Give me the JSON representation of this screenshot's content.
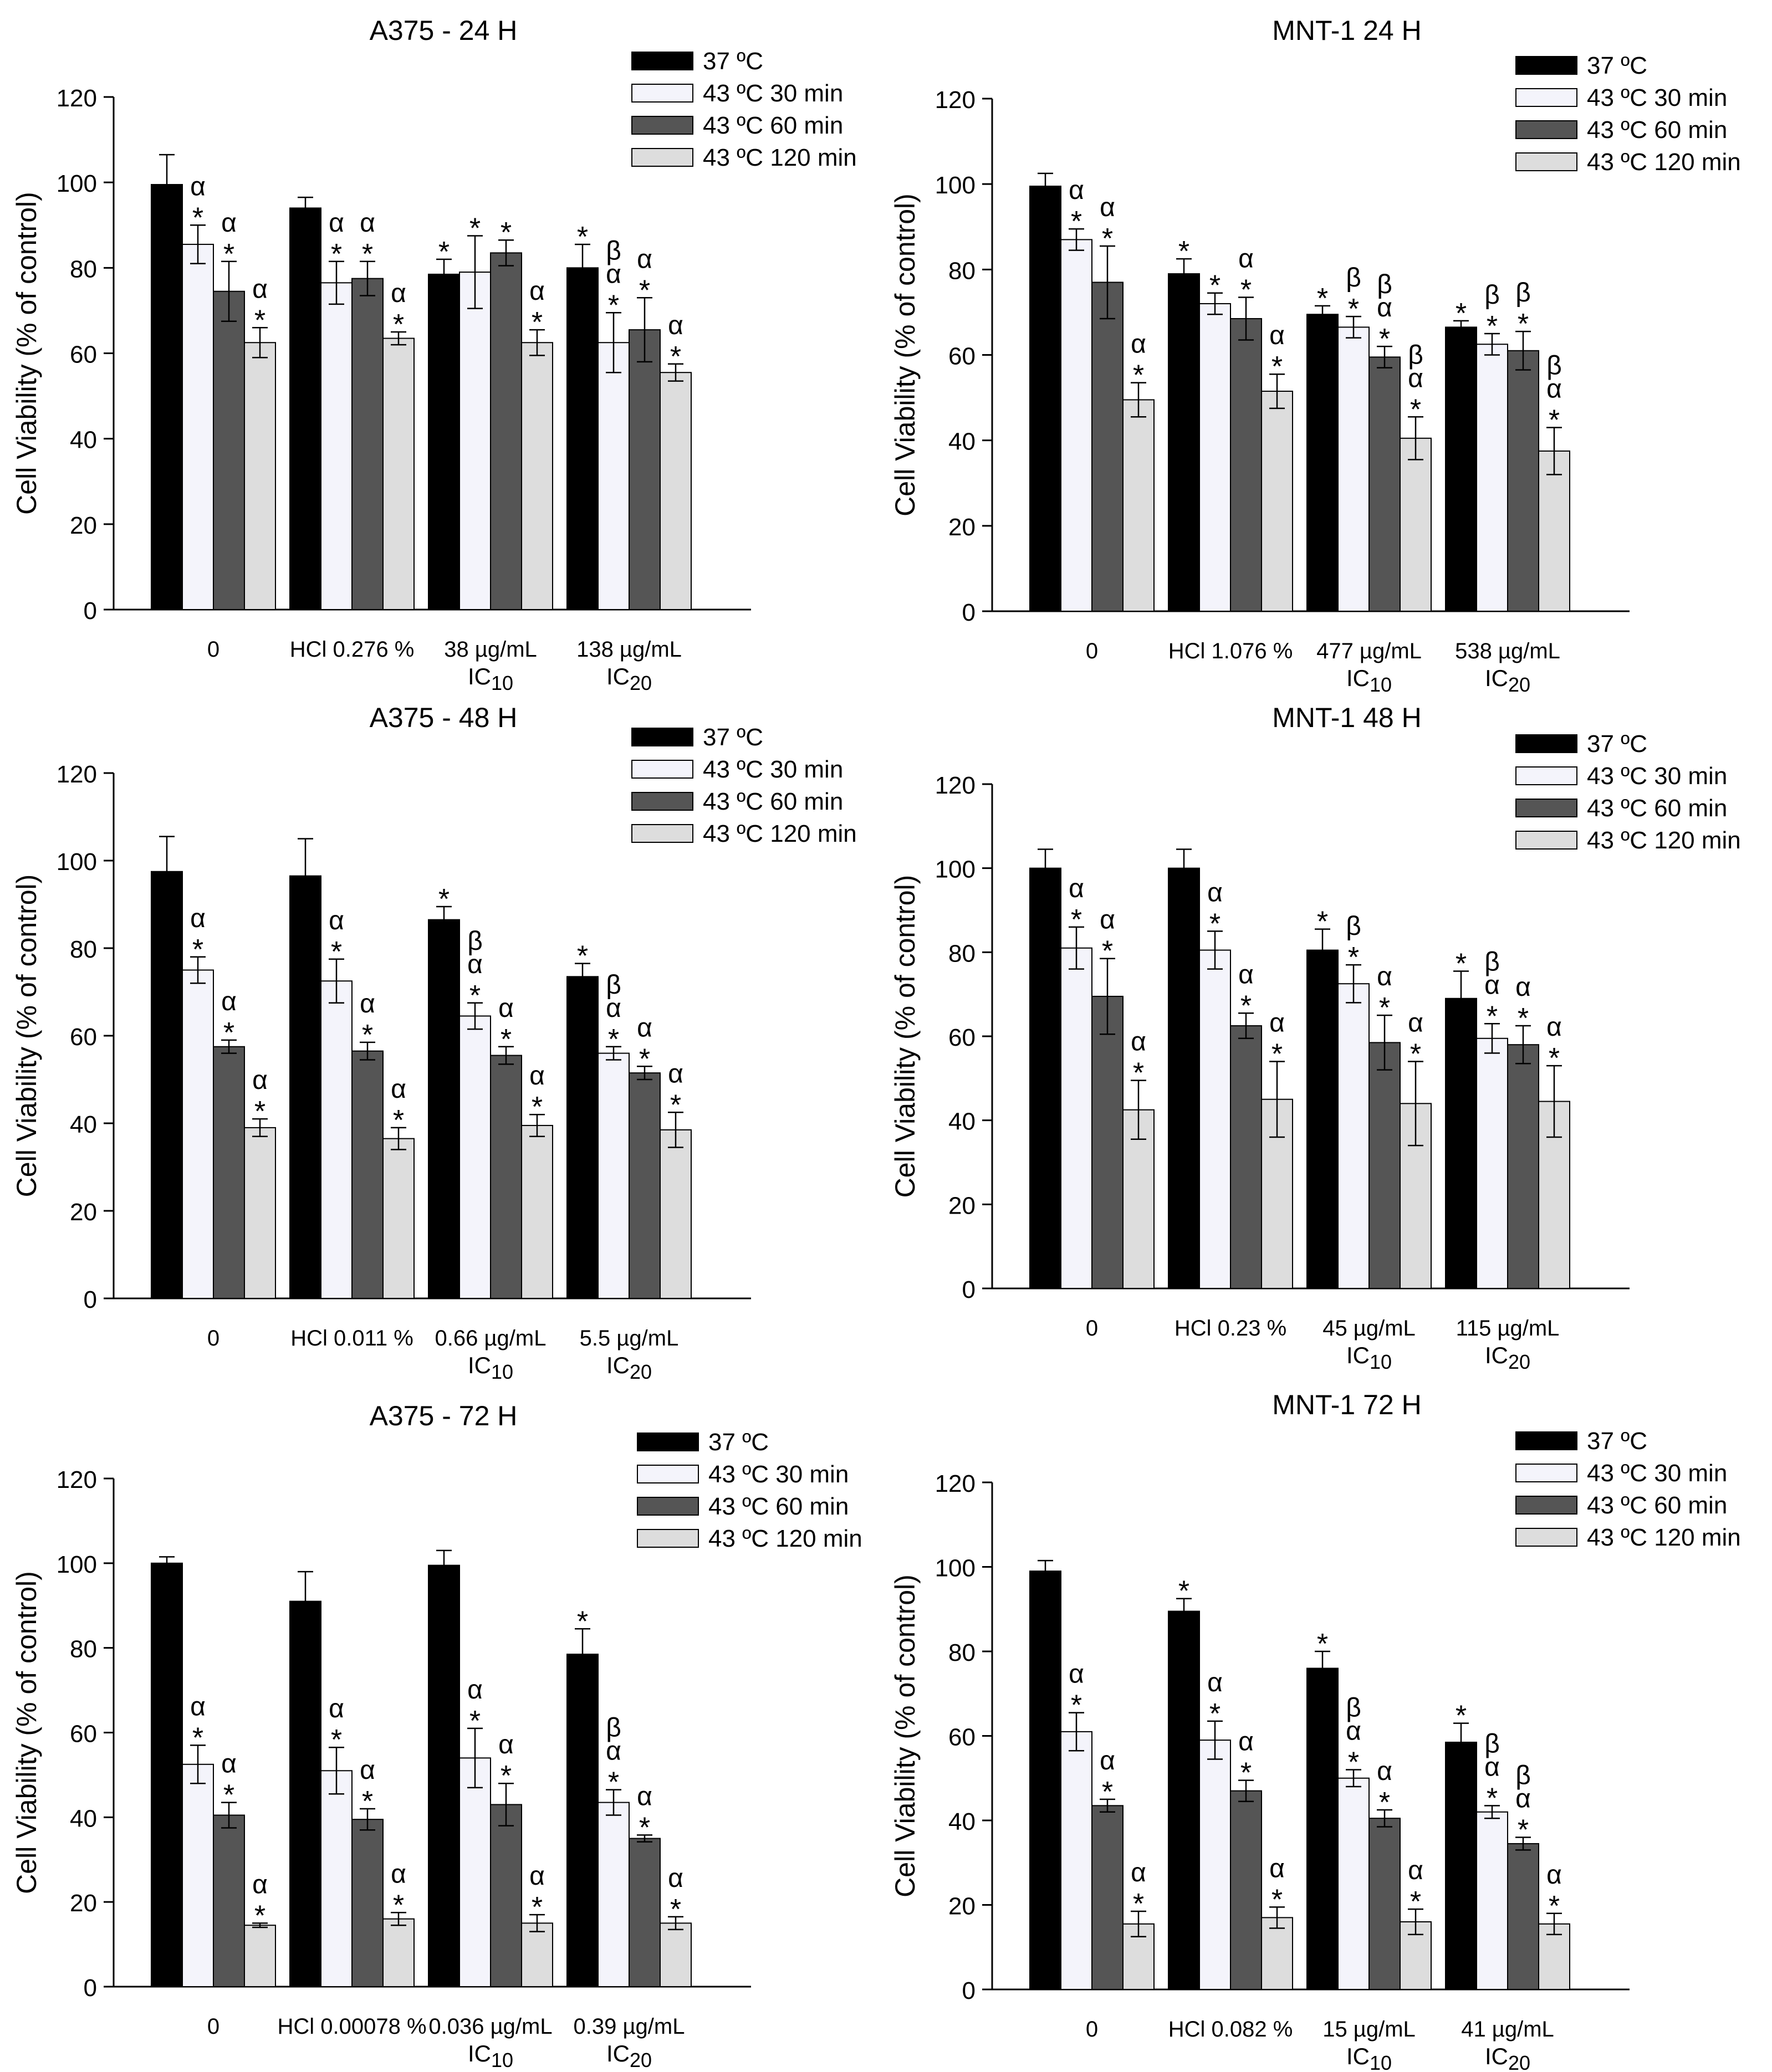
{
  "legend": {
    "entries": [
      "37 ºC",
      "43 ºC 30 min",
      "43 ºC 60 min",
      "43 ºC 120 min"
    ],
    "colors": [
      "#000000",
      "#f4f4fb",
      "#555555",
      "#dddddd"
    ],
    "placement": "top-right"
  },
  "chart_data": [
    {
      "type": "bar",
      "title": "A375 - 24 H",
      "ylabel": "Cell Viability (% of control)",
      "ylim": [
        0,
        120
      ],
      "yticks": [
        0,
        20,
        40,
        60,
        80,
        100,
        120
      ],
      "categories": [
        {
          "label": "0",
          "sub": ""
        },
        {
          "label": "HCl 0.276 %",
          "sub": ""
        },
        {
          "label": "38 µg/mL",
          "sub": "IC10"
        },
        {
          "label": "138 µg/mL",
          "sub": "IC20"
        }
      ],
      "series": [
        {
          "name": "37 ºC",
          "values": [
            99.5,
            94,
            78.5,
            80
          ],
          "errors": [
            7,
            2.5,
            3.5,
            5.5
          ],
          "marks": [
            "",
            "",
            "*",
            "*"
          ]
        },
        {
          "name": "43 ºC 30 min",
          "values": [
            85.5,
            76.5,
            79,
            62.5
          ],
          "errors": [
            4.5,
            5,
            8.5,
            7
          ],
          "marks": [
            "α*",
            "α*",
            "*",
            "βα*"
          ]
        },
        {
          "name": "43 ºC 60 min",
          "values": [
            74.5,
            77.5,
            83.5,
            65.5
          ],
          "errors": [
            7,
            4,
            3,
            7.5
          ],
          "marks": [
            "α*",
            "α*",
            "*",
            "α*"
          ]
        },
        {
          "name": "43 ºC 120 min",
          "values": [
            62.5,
            63.5,
            62.5,
            55.5
          ],
          "errors": [
            3.5,
            1.5,
            3,
            2
          ],
          "marks": [
            "α*",
            "α*",
            "α*",
            "α*"
          ]
        }
      ]
    },
    {
      "type": "bar",
      "title": "MNT-1 24 H",
      "ylabel": "Cell Viability (% of control)",
      "ylim": [
        0,
        120
      ],
      "yticks": [
        0,
        20,
        40,
        60,
        80,
        100,
        120
      ],
      "categories": [
        {
          "label": "0",
          "sub": ""
        },
        {
          "label": "HCl 1.076 %",
          "sub": ""
        },
        {
          "label": "477 µg/mL",
          "sub": "IC10"
        },
        {
          "label": "538 µg/mL",
          "sub": "IC20"
        }
      ],
      "series": [
        {
          "name": "37 ºC",
          "values": [
            99.5,
            79,
            69.5,
            66.5
          ],
          "errors": [
            3,
            3.5,
            2,
            1.5
          ],
          "marks": [
            "",
            "*",
            "*",
            "*"
          ]
        },
        {
          "name": "43 ºC 30 min",
          "values": [
            87,
            72,
            66.5,
            62.5
          ],
          "errors": [
            2.5,
            2.5,
            2.5,
            2.5
          ],
          "marks": [
            "α*",
            "*",
            "β*",
            "β*"
          ]
        },
        {
          "name": "43 ºC 60 min",
          "values": [
            77,
            68.5,
            59.5,
            61
          ],
          "errors": [
            8.5,
            5,
            2.5,
            4.5
          ],
          "marks": [
            "α*",
            "α*",
            "βα*",
            "β*"
          ]
        },
        {
          "name": "43 ºC 120 min",
          "values": [
            49.5,
            51.5,
            40.5,
            37.5
          ],
          "errors": [
            4,
            4,
            5,
            5.5
          ],
          "marks": [
            "α*",
            "α*",
            "βα*",
            "βα*"
          ]
        }
      ]
    },
    {
      "type": "bar",
      "title": "A375 - 48 H",
      "ylabel": "Cell Viability (% of control)",
      "ylim": [
        0,
        120
      ],
      "yticks": [
        0,
        20,
        40,
        60,
        80,
        100,
        120
      ],
      "categories": [
        {
          "label": "0",
          "sub": ""
        },
        {
          "label": "HCl 0.011 %",
          "sub": ""
        },
        {
          "label": "0.66 µg/mL",
          "sub": "IC10"
        },
        {
          "label": "5.5 µg/mL",
          "sub": "IC20"
        }
      ],
      "series": [
        {
          "name": "37 ºC",
          "values": [
            97.5,
            96.5,
            86.5,
            73.5
          ],
          "errors": [
            8,
            8.5,
            3,
            3
          ],
          "marks": [
            "",
            "",
            "*",
            "*"
          ]
        },
        {
          "name": "43 ºC 30 min",
          "values": [
            75,
            72.5,
            64.5,
            56
          ],
          "errors": [
            3,
            5,
            3,
            1.5
          ],
          "marks": [
            "α*",
            "α*",
            "βα*",
            "βα*"
          ]
        },
        {
          "name": "43 ºC 60 min",
          "values": [
            57.5,
            56.5,
            55.5,
            51.5
          ],
          "errors": [
            1.5,
            2,
            2,
            1.5
          ],
          "marks": [
            "α*",
            "α*",
            "α*",
            "α*"
          ]
        },
        {
          "name": "43 ºC 120 min",
          "values": [
            39,
            36.5,
            39.5,
            38.5
          ],
          "errors": [
            2,
            2.5,
            2.5,
            4
          ],
          "marks": [
            "α*",
            "α*",
            "α*",
            "α*"
          ]
        }
      ]
    },
    {
      "type": "bar",
      "title": "MNT-1 48 H",
      "ylabel": "Cell Viability (% of control)",
      "ylim": [
        0,
        120
      ],
      "yticks": [
        0,
        20,
        40,
        60,
        80,
        100,
        120
      ],
      "categories": [
        {
          "label": "0",
          "sub": ""
        },
        {
          "label": "HCl 0.23 %",
          "sub": ""
        },
        {
          "label": "45 µg/mL",
          "sub": "IC10"
        },
        {
          "label": "115 µg/mL",
          "sub": "IC20"
        }
      ],
      "series": [
        {
          "name": "37 ºC",
          "values": [
            100,
            100,
            80.5,
            69
          ],
          "errors": [
            4.5,
            4.5,
            5,
            6.5
          ],
          "marks": [
            "",
            "",
            "*",
            "*"
          ]
        },
        {
          "name": "43 ºC 30 min",
          "values": [
            81,
            80.5,
            72.5,
            59.5
          ],
          "errors": [
            5,
            4.5,
            4.5,
            3.5
          ],
          "marks": [
            "α*",
            "α*",
            "β*",
            "βα*"
          ]
        },
        {
          "name": "43 ºC 60 min",
          "values": [
            69.5,
            62.5,
            58.5,
            58
          ],
          "errors": [
            9,
            3,
            6.5,
            4.5
          ],
          "marks": [
            "α*",
            "α*",
            "α*",
            "α*"
          ]
        },
        {
          "name": "43 ºC 120 min",
          "values": [
            42.5,
            45,
            44,
            44.5
          ],
          "errors": [
            7,
            9,
            10,
            8.5
          ],
          "marks": [
            "α*",
            "α*",
            "α*",
            "α*"
          ]
        }
      ]
    },
    {
      "type": "bar",
      "title": "A375 - 72 H",
      "ylabel": "Cell Viability (% of control)",
      "ylim": [
        0,
        120
      ],
      "yticks": [
        0,
        20,
        40,
        60,
        80,
        100,
        120
      ],
      "categories": [
        {
          "label": "0",
          "sub": ""
        },
        {
          "label": "HCl 0.00078 %",
          "sub": ""
        },
        {
          "label": "0.036 µg/mL",
          "sub": "IC10"
        },
        {
          "label": "0.39 µg/mL",
          "sub": "IC20"
        }
      ],
      "series": [
        {
          "name": "37 ºC",
          "values": [
            100,
            91,
            99.5,
            78.5
          ],
          "errors": [
            1.5,
            7,
            3.5,
            6
          ],
          "marks": [
            "",
            "",
            "",
            "*"
          ]
        },
        {
          "name": "43 ºC 30 min",
          "values": [
            52.5,
            51,
            54,
            43.5
          ],
          "errors": [
            4.5,
            5.5,
            7,
            3
          ],
          "marks": [
            "α*",
            "α*",
            "α*",
            "βα*"
          ]
        },
        {
          "name": "43 ºC 60 min",
          "values": [
            40.5,
            39.5,
            43,
            35
          ],
          "errors": [
            3,
            2.5,
            5,
            0.8
          ],
          "marks": [
            "α*",
            "α*",
            "α*",
            "α*"
          ]
        },
        {
          "name": "43 ºC 120 min",
          "values": [
            14.5,
            16,
            15,
            15
          ],
          "errors": [
            0.5,
            1.5,
            2,
            1.5
          ],
          "marks": [
            "α*",
            "α*",
            "α*",
            "α*"
          ]
        }
      ]
    },
    {
      "type": "bar",
      "title": "MNT-1 72 H",
      "ylabel": "Cell Viability (% of control)",
      "ylim": [
        0,
        120
      ],
      "yticks": [
        0,
        20,
        40,
        60,
        80,
        100,
        120
      ],
      "categories": [
        {
          "label": "0",
          "sub": ""
        },
        {
          "label": "HCl 0.082 %",
          "sub": ""
        },
        {
          "label": "15 µg/mL",
          "sub": "IC10"
        },
        {
          "label": "41 µg/mL",
          "sub": "IC20"
        }
      ],
      "series": [
        {
          "name": "37 ºC",
          "values": [
            99,
            89.5,
            76,
            58.5
          ],
          "errors": [
            2.5,
            3,
            4,
            4.5
          ],
          "marks": [
            "",
            "*",
            "*",
            "*"
          ]
        },
        {
          "name": "43 ºC 30 min",
          "values": [
            61,
            59,
            50,
            42
          ],
          "errors": [
            4.5,
            4.5,
            2,
            1.5
          ],
          "marks": [
            "α*",
            "α*",
            "βα*",
            "βα*"
          ]
        },
        {
          "name": "43 ºC 60 min",
          "values": [
            43.5,
            47,
            40.5,
            34.5
          ],
          "errors": [
            1.5,
            2.5,
            2,
            1.5
          ],
          "marks": [
            "α*",
            "α*",
            "α*",
            "βα*"
          ]
        },
        {
          "name": "43 ºC 120 min",
          "values": [
            15.5,
            17,
            16,
            15.5
          ],
          "errors": [
            3,
            2.5,
            3,
            2.5
          ],
          "marks": [
            "α*",
            "α*",
            "α*",
            "α*"
          ]
        }
      ]
    }
  ]
}
